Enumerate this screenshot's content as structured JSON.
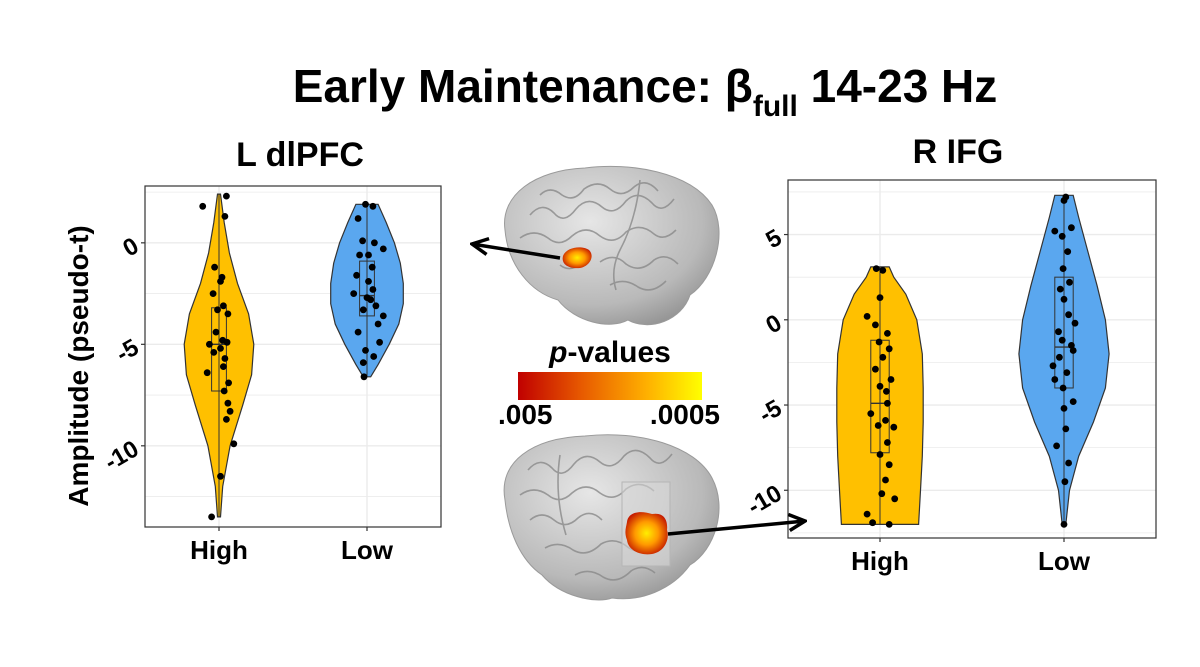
{
  "title": {
    "main": "Early Maintenance: β",
    "subscript": "full",
    "suffix": " 14-23 Hz"
  },
  "y_axis_label": "Amplitude (pseudo-t)",
  "colorbar": {
    "title_italic": "p",
    "title_rest": "-values",
    "min_label": ".005",
    "max_label": ".0005",
    "colors": [
      "#c00000",
      "#e85b00",
      "#ffb000",
      "#ffff00"
    ]
  },
  "colors": {
    "high": "#ffc000",
    "low": "#5aa7ef",
    "outline": "#333333",
    "point": "#000000",
    "grid": "#ebebeb",
    "brain": "#bdbdbd"
  },
  "chart_data": [
    {
      "type": "violin",
      "title": "L dlPFC",
      "categories": [
        "High",
        "Low"
      ],
      "ylim": [
        -14,
        2.8
      ],
      "yticks": [
        0,
        -5,
        -10
      ],
      "ytick_labels": [
        "0",
        "-5",
        "-10"
      ],
      "xlabel": "",
      "ylabel": "Amplitude (pseudo-t)",
      "series": [
        {
          "name": "High",
          "box": {
            "q1": -7.3,
            "median": -5.0,
            "q3": -3.2,
            "min": -13.5,
            "max": 2.4
          },
          "density": [
            [
              -13.5,
              0.02
            ],
            [
              -12,
              0.05
            ],
            [
              -10,
              0.15
            ],
            [
              -8,
              0.32
            ],
            [
              -6.5,
              0.44
            ],
            [
              -5,
              0.47
            ],
            [
              -3.5,
              0.4
            ],
            [
              -2,
              0.25
            ],
            [
              -0.5,
              0.14
            ],
            [
              1,
              0.07
            ],
            [
              2.4,
              0.02
            ]
          ],
          "points": [
            [
              1.8,
              -0.22
            ],
            [
              2.3,
              0.1
            ],
            [
              1.3,
              0.08
            ],
            [
              -1.2,
              -0.06
            ],
            [
              -1.7,
              0.04
            ],
            [
              -1.9,
              0.02
            ],
            [
              -2.5,
              -0.08
            ],
            [
              -3.1,
              0.06
            ],
            [
              -3.3,
              -0.02
            ],
            [
              -3.5,
              0.12
            ],
            [
              -4.4,
              -0.04
            ],
            [
              -4.8,
              0.05
            ],
            [
              -4.9,
              0.11
            ],
            [
              -5.0,
              -0.13
            ],
            [
              -5.2,
              0.02
            ],
            [
              -5.4,
              -0.07
            ],
            [
              -5.7,
              0.08
            ],
            [
              -6.4,
              -0.16
            ],
            [
              -6.1,
              0.06
            ],
            [
              -6.9,
              0.13
            ],
            [
              -7.3,
              0.07
            ],
            [
              -7.9,
              0.12
            ],
            [
              -8.3,
              0.15
            ],
            [
              -8.7,
              0.1
            ],
            [
              -9.9,
              0.2
            ],
            [
              -11.5,
              0.02
            ],
            [
              -13.5,
              -0.1
            ]
          ]
        },
        {
          "name": "Low",
          "box": {
            "q1": -3.6,
            "median": -2.6,
            "q3": -0.9,
            "min": -6.6,
            "max": 1.9
          },
          "density": [
            [
              -6.6,
              0.05
            ],
            [
              -6,
              0.15
            ],
            [
              -5,
              0.3
            ],
            [
              -4,
              0.43
            ],
            [
              -3,
              0.49
            ],
            [
              -2,
              0.49
            ],
            [
              -1,
              0.45
            ],
            [
              0,
              0.37
            ],
            [
              1,
              0.26
            ],
            [
              1.9,
              0.15
            ]
          ],
          "points": [
            [
              1.9,
              -0.02
            ],
            [
              1.8,
              0.08
            ],
            [
              1.2,
              -0.12
            ],
            [
              0.1,
              -0.06
            ],
            [
              0.0,
              0.1
            ],
            [
              -0.3,
              0.22
            ],
            [
              -0.6,
              -0.1
            ],
            [
              -0.6,
              0.02
            ],
            [
              -1.2,
              0.07
            ],
            [
              -1.6,
              -0.14
            ],
            [
              -1.9,
              0.02
            ],
            [
              -2.3,
              0.08
            ],
            [
              -2.5,
              -0.18
            ],
            [
              -2.7,
              0.0
            ],
            [
              -2.8,
              0.05
            ],
            [
              -3.1,
              0.12
            ],
            [
              -3.3,
              -0.05
            ],
            [
              -3.6,
              0.22
            ],
            [
              -4.0,
              0.15
            ],
            [
              -4.4,
              -0.12
            ],
            [
              -4.9,
              0.17
            ],
            [
              -5.3,
              -0.02
            ],
            [
              -5.6,
              0.09
            ],
            [
              -5.9,
              -0.05
            ],
            [
              -6.6,
              -0.04
            ]
          ]
        }
      ]
    },
    {
      "type": "violin",
      "title": "R IFG",
      "categories": [
        "High",
        "Low"
      ],
      "ylim": [
        -12.8,
        8.2
      ],
      "yticks": [
        5,
        0,
        -5,
        -10
      ],
      "ytick_labels": [
        "5",
        "0",
        "-5",
        "-10"
      ],
      "xlabel": "",
      "ylabel": "",
      "series": [
        {
          "name": "High",
          "box": {
            "q1": -7.8,
            "median": -4.9,
            "q3": -1.2,
            "min": -12.0,
            "max": 3.1
          },
          "density": [
            [
              -12,
              0.42
            ],
            [
              -10,
              0.44
            ],
            [
              -8,
              0.46
            ],
            [
              -6,
              0.47
            ],
            [
              -4,
              0.47
            ],
            [
              -2,
              0.46
            ],
            [
              0,
              0.4
            ],
            [
              1.5,
              0.28
            ],
            [
              2.5,
              0.15
            ],
            [
              3.1,
              0.1
            ]
          ],
          "points": [
            [
              3.0,
              -0.04
            ],
            [
              2.9,
              0.03
            ],
            [
              1.3,
              0.0
            ],
            [
              0.2,
              -0.14
            ],
            [
              -0.3,
              -0.05
            ],
            [
              -0.8,
              0.08
            ],
            [
              -1.3,
              -0.01
            ],
            [
              -1.7,
              0.1
            ],
            [
              -2.2,
              0.03
            ],
            [
              -2.9,
              -0.05
            ],
            [
              -3.5,
              0.12
            ],
            [
              -3.9,
              0.0
            ],
            [
              -4.2,
              0.07
            ],
            [
              -4.9,
              0.08
            ],
            [
              -5.5,
              -0.1
            ],
            [
              -5.9,
              0.06
            ],
            [
              -6.2,
              -0.02
            ],
            [
              -6.3,
              0.15
            ],
            [
              -7.2,
              0.08
            ],
            [
              -7.9,
              0.0
            ],
            [
              -8.5,
              0.1
            ],
            [
              -9.4,
              0.06
            ],
            [
              -10.2,
              0.02
            ],
            [
              -10.5,
              0.16
            ],
            [
              -11.4,
              -0.14
            ],
            [
              -11.9,
              -0.08
            ],
            [
              -12.0,
              0.1
            ]
          ]
        },
        {
          "name": "Low",
          "box": {
            "q1": -4.0,
            "median": -1.6,
            "q3": 2.5,
            "min": -12.0,
            "max": 7.3
          },
          "density": [
            [
              -12,
              0.02
            ],
            [
              -10,
              0.06
            ],
            [
              -8,
              0.16
            ],
            [
              -6,
              0.32
            ],
            [
              -4,
              0.45
            ],
            [
              -2,
              0.49
            ],
            [
              0,
              0.45
            ],
            [
              2,
              0.36
            ],
            [
              4,
              0.26
            ],
            [
              6,
              0.16
            ],
            [
              7.3,
              0.1
            ]
          ],
          "points": [
            [
              7.2,
              0.02
            ],
            [
              7.0,
              0.0
            ],
            [
              5.4,
              0.08
            ],
            [
              5.2,
              -0.1
            ],
            [
              4.9,
              -0.02
            ],
            [
              4.0,
              0.04
            ],
            [
              3.0,
              -0.01
            ],
            [
              2.2,
              0.06
            ],
            [
              1.8,
              -0.04
            ],
            [
              1.2,
              0.0
            ],
            [
              0.3,
              0.05
            ],
            [
              -0.2,
              0.12
            ],
            [
              -0.7,
              -0.06
            ],
            [
              -1.2,
              -0.02
            ],
            [
              -1.5,
              0.08
            ],
            [
              -1.8,
              0.1
            ],
            [
              -2.2,
              -0.05
            ],
            [
              -2.7,
              -0.12
            ],
            [
              -3.1,
              0.03
            ],
            [
              -3.5,
              -0.1
            ],
            [
              -4.0,
              -0.01
            ],
            [
              -4.8,
              0.1
            ],
            [
              -5.2,
              0.0
            ],
            [
              -6.4,
              0.02
            ],
            [
              -7.4,
              -0.08
            ],
            [
              -8.4,
              0.05
            ],
            [
              -9.5,
              0.01
            ],
            [
              -12.0,
              0.0
            ]
          ]
        }
      ]
    }
  ]
}
